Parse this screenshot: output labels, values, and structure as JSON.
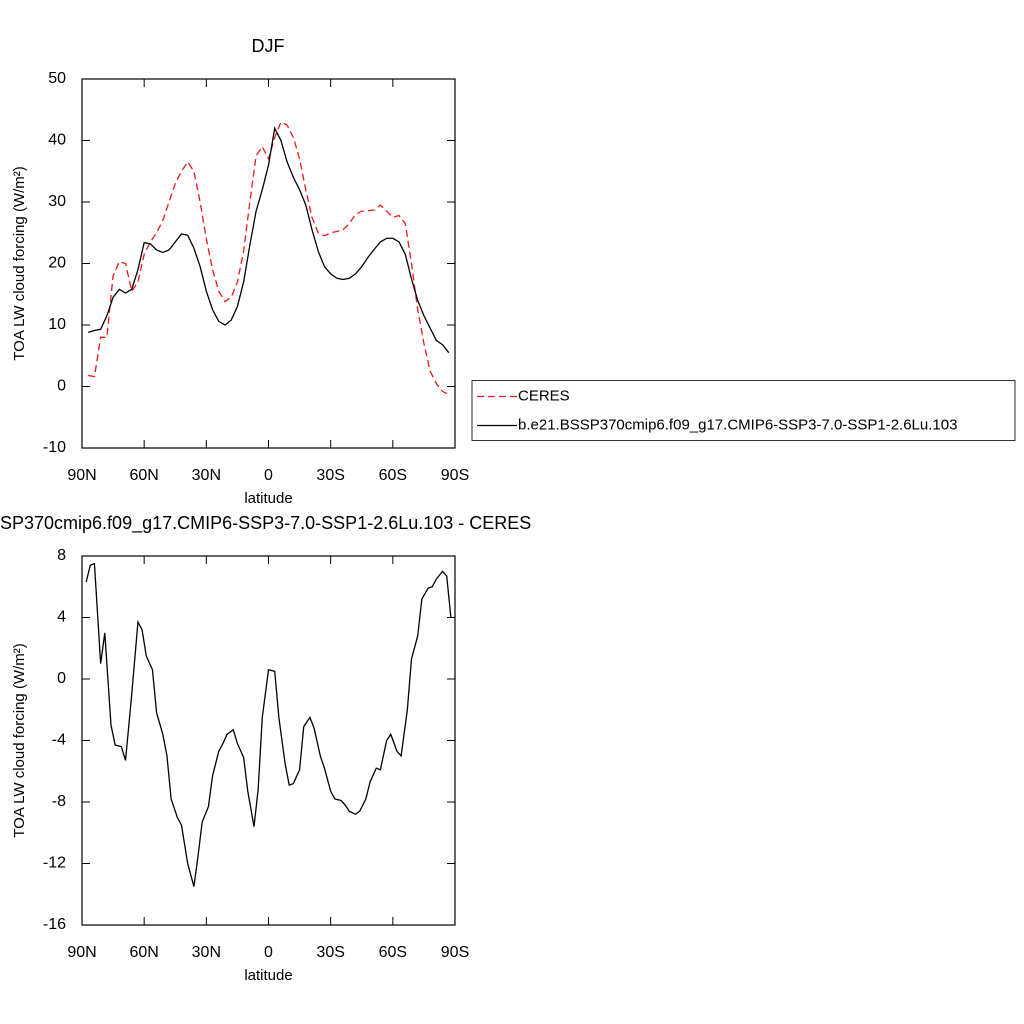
{
  "chart_data": [
    {
      "type": "line",
      "title": "DJF",
      "xlabel": "latitude",
      "ylabel": "TOA LW cloud forcing (W/m²)",
      "x": [
        87,
        84,
        81,
        78,
        75,
        72,
        69,
        66,
        63,
        60,
        57,
        54,
        51,
        48,
        45,
        42,
        39,
        36,
        33,
        30,
        27,
        24,
        21,
        18,
        15,
        12,
        9,
        6,
        3,
        0,
        -3,
        -6,
        -9,
        -12,
        -15,
        -18,
        -21,
        -24,
        -27,
        -30,
        -33,
        -36,
        -39,
        -42,
        -45,
        -48,
        -51,
        -54,
        -57,
        -60,
        -63,
        -66,
        -69,
        -72,
        -75,
        -78,
        -81,
        -84,
        -87
      ],
      "series": [
        {
          "name": "CERES",
          "color": "#e8191c",
          "dashed": true,
          "values": [
            1.8,
            1.6,
            8,
            8,
            18,
            20.3,
            20,
            15.5,
            17,
            21.5,
            23.5,
            25,
            27,
            30,
            33,
            35,
            36.5,
            35,
            30,
            24,
            19,
            15.5,
            13.8,
            14.5,
            17,
            22,
            30,
            37.5,
            39,
            37,
            40.5,
            43,
            42.5,
            40.5,
            37,
            32,
            27.5,
            25,
            24.5,
            25,
            25.2,
            25.5,
            26.5,
            28,
            28.5,
            28.6,
            28.7,
            29.5,
            28.5,
            27.5,
            27.8,
            26.5,
            20,
            12.5,
            7,
            2.5,
            0.5,
            -0.8,
            -1.3
          ]
        },
        {
          "name": "b.e21.BSSP370cmip6.f09_g17.CMIP6-SSP3-7.0-SSP1-2.6Lu.103",
          "color": "#000000",
          "dashed": false,
          "values": [
            8.8,
            9.1,
            9.3,
            11.5,
            14.5,
            15.8,
            15.2,
            15.8,
            19,
            23.4,
            23.2,
            22.2,
            21.8,
            22.2,
            23.5,
            24.8,
            24.6,
            22.5,
            19.5,
            15.5,
            12.5,
            10.6,
            10,
            10.8,
            13,
            17,
            23,
            28.5,
            32,
            36,
            42,
            40,
            36.5,
            34,
            32,
            29.5,
            25.5,
            22,
            19.5,
            18.3,
            17.6,
            17.4,
            17.6,
            18.3,
            19.5,
            21,
            22.3,
            23.5,
            24.1,
            24.1,
            23.5,
            21.5,
            17.5,
            14,
            11.5,
            9.5,
            7.5,
            6.8,
            5.5
          ]
        }
      ],
      "xlim": [
        90,
        -90
      ],
      "xticks": [
        {
          "value": 90,
          "label": "90N"
        },
        {
          "value": 60,
          "label": "60N"
        },
        {
          "value": 30,
          "label": "30N"
        },
        0,
        {
          "value": -30,
          "label": "30S"
        },
        {
          "value": -60,
          "label": "60S"
        },
        {
          "value": -90,
          "label": "90S"
        }
      ],
      "ylim": [
        -10,
        50
      ],
      "yticks": [
        -10,
        0,
        10,
        20,
        30,
        40,
        50
      ],
      "legend": "right"
    },
    {
      "type": "line",
      "title": "SP370cmip6.f09_g17.CMIP6-SSP3-7.0-SSP1-2.6Lu.103 - CERES",
      "xlabel": "latitude",
      "ylabel": "TOA LW cloud forcing (W/m²)",
      "x": [
        88,
        86,
        84,
        81,
        79,
        76,
        74,
        71,
        69,
        66,
        63,
        61,
        59,
        56,
        54,
        51,
        49,
        47,
        44,
        42,
        39,
        36,
        34,
        32,
        29,
        27,
        24,
        22,
        20,
        17,
        15,
        12,
        10,
        7,
        5,
        3,
        0,
        -3,
        -5,
        -8,
        -10,
        -12,
        -15,
        -17,
        -20,
        -22,
        -25,
        -27,
        -30,
        -32,
        -35,
        -37,
        -39,
        -42,
        -44,
        -47,
        -49,
        -52,
        -54,
        -57,
        -59,
        -62,
        -64,
        -67,
        -69,
        -72,
        -74,
        -77,
        -79,
        -81,
        -84,
        -86,
        -88
      ],
      "series": [
        {
          "color": "#000000",
          "dashed": false,
          "values": [
            6.3,
            7.4,
            7.5,
            1,
            3,
            -3,
            -4.3,
            -4.4,
            -5.3,
            -1,
            3.7,
            3.2,
            1.5,
            0.6,
            -2.2,
            -3.6,
            -5,
            -7.8,
            -9,
            -9.5,
            -12,
            -13.5,
            -11.5,
            -9.3,
            -8.3,
            -6.3,
            -4.7,
            -4.2,
            -3.6,
            -3.3,
            -4.2,
            -5.1,
            -7.3,
            -9.6,
            -7.2,
            -2.5,
            0.6,
            0.5,
            -2.5,
            -5.5,
            -6.9,
            -6.8,
            -5.9,
            -3.1,
            -2.5,
            -3.2,
            -5,
            -5.8,
            -7.3,
            -7.8,
            -7.9,
            -8.2,
            -8.6,
            -8.8,
            -8.6,
            -7.8,
            -6.7,
            -5.8,
            -5.9,
            -4,
            -3.6,
            -4.7,
            -5,
            -2,
            1.3,
            2.8,
            5.2,
            5.9,
            6,
            6.5,
            7,
            6.7,
            4
          ]
        }
      ],
      "xlim": [
        90,
        -90
      ],
      "xticks": [
        {
          "value": 90,
          "label": "90N"
        },
        {
          "value": 60,
          "label": "60N"
        },
        {
          "value": 30,
          "label": "30N"
        },
        0,
        {
          "value": -30,
          "label": "30S"
        },
        {
          "value": -60,
          "label": "60S"
        },
        {
          "value": -90,
          "label": "90S"
        }
      ],
      "ylim": [
        -16,
        8
      ],
      "yticks": [
        -16,
        -12,
        -8,
        -4,
        0,
        4,
        8
      ]
    }
  ]
}
